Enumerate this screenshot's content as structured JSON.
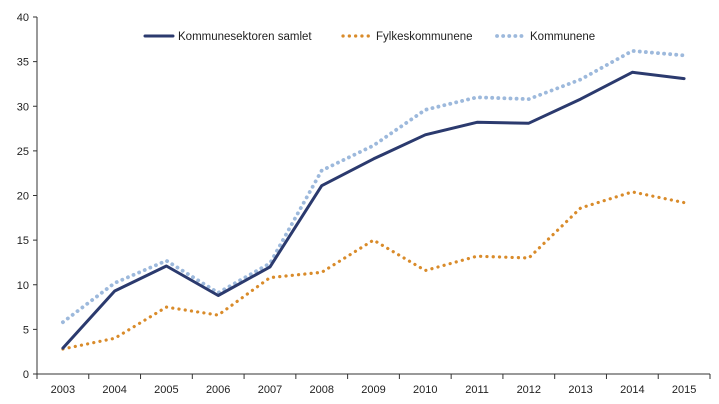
{
  "chart_data": {
    "type": "line",
    "title": "",
    "xlabel": "",
    "ylabel": "",
    "x": [
      "2003",
      "2004",
      "2005",
      "2006",
      "2007",
      "2008",
      "2009",
      "2010",
      "2011",
      "2012",
      "2013",
      "2014",
      "2015"
    ],
    "ylim": [
      0,
      40
    ],
    "yticks": [
      "0",
      "5",
      "10",
      "15",
      "20",
      "25",
      "30",
      "35",
      "40"
    ],
    "grid": false,
    "legend_position": "top",
    "series": [
      {
        "name": "Kommunesektoren samlet",
        "style": "solid",
        "color": "#2b3a6e",
        "values": [
          2.9,
          9.3,
          12.1,
          8.8,
          12.0,
          21.1,
          24.1,
          26.8,
          28.2,
          28.1,
          30.8,
          33.8,
          33.1
        ]
      },
      {
        "name": "Fylkeskommunene",
        "style": "dotted",
        "color": "#d98b2a",
        "values": [
          2.8,
          4.0,
          7.5,
          6.6,
          10.8,
          11.4,
          15.0,
          11.6,
          13.2,
          13.0,
          18.6,
          20.4,
          19.2
        ]
      },
      {
        "name": "Kommunene",
        "style": "dotted",
        "color": "#9db9dc",
        "values": [
          5.8,
          10.2,
          12.7,
          9.1,
          12.4,
          22.8,
          25.6,
          29.6,
          31.0,
          30.8,
          33.0,
          36.2,
          35.7
        ]
      }
    ]
  }
}
